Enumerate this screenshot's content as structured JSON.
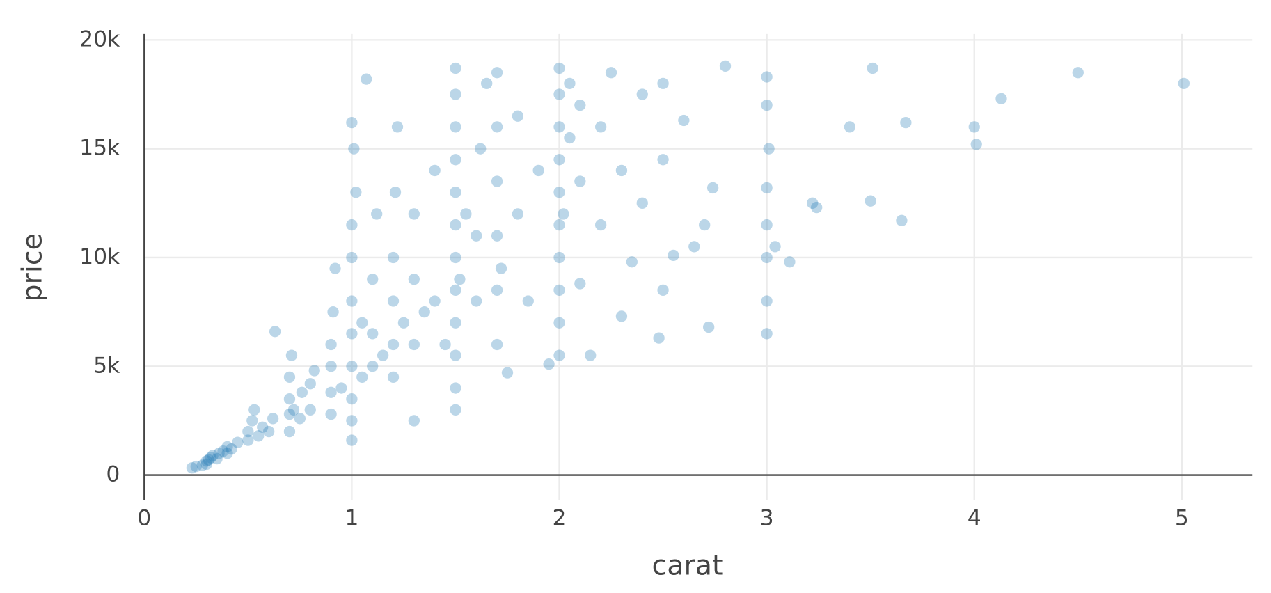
{
  "chart_data": {
    "type": "scatter",
    "x_label": "carat",
    "y_label": "price",
    "xlim": [
      0,
      5.34
    ],
    "ylim": [
      -1150,
      20270
    ],
    "xticks": [
      0,
      1,
      2,
      3,
      4,
      5
    ],
    "yticks": [
      0,
      {
        "value": 5000,
        "label": "5k"
      },
      {
        "value": 10000,
        "label": "10k"
      },
      {
        "value": 15000,
        "label": "15k"
      },
      {
        "value": 20000,
        "label": "20k"
      }
    ],
    "grid": true,
    "color": "#1f77b4",
    "opacity": 0.3,
    "x": [
      0.23,
      0.25,
      0.28,
      0.3,
      0.3,
      0.31,
      0.32,
      0.33,
      0.35,
      0.36,
      0.38,
      0.4,
      0.4,
      0.42,
      0.45,
      0.5,
      0.5,
      0.52,
      0.53,
      0.55,
      0.57,
      0.6,
      0.62,
      0.63,
      0.7,
      0.7,
      0.7,
      0.7,
      0.71,
      0.72,
      0.75,
      0.76,
      0.8,
      0.8,
      0.82,
      0.9,
      0.9,
      0.9,
      0.9,
      0.91,
      0.92,
      0.95,
      1.0,
      1.0,
      1.0,
      1.0,
      1.0,
      1.0,
      1.0,
      1.0,
      1.0,
      1.01,
      1.02,
      1.05,
      1.05,
      1.07,
      1.1,
      1.1,
      1.1,
      1.12,
      1.15,
      1.2,
      1.2,
      1.2,
      1.2,
      1.21,
      1.22,
      1.25,
      1.3,
      1.3,
      1.3,
      1.3,
      1.35,
      1.4,
      1.4,
      1.45,
      1.5,
      1.5,
      1.5,
      1.5,
      1.5,
      1.5,
      1.5,
      1.5,
      1.5,
      1.5,
      1.5,
      1.5,
      1.52,
      1.55,
      1.6,
      1.6,
      1.62,
      1.65,
      1.7,
      1.7,
      1.7,
      1.7,
      1.7,
      1.7,
      1.72,
      1.75,
      1.8,
      1.8,
      1.85,
      1.9,
      1.95,
      2.0,
      2.0,
      2.0,
      2.0,
      2.0,
      2.0,
      2.0,
      2.0,
      2.0,
      2.0,
      2.02,
      2.05,
      2.05,
      2.1,
      2.1,
      2.1,
      2.15,
      2.2,
      2.2,
      2.25,
      2.3,
      2.3,
      2.35,
      2.4,
      2.4,
      2.48,
      2.5,
      2.5,
      2.5,
      2.55,
      2.6,
      2.65,
      2.7,
      2.72,
      2.74,
      2.8,
      3.0,
      3.0,
      3.0,
      3.0,
      3.0,
      3.0,
      3.0,
      3.01,
      3.04,
      3.11,
      3.22,
      3.24,
      3.4,
      3.5,
      3.51,
      3.65,
      3.67,
      4.0,
      4.01,
      4.13,
      4.5,
      5.01
    ],
    "values": [
      330,
      400,
      450,
      500,
      650,
      700,
      800,
      900,
      750,
      1000,
      1100,
      1000,
      1300,
      1200,
      1500,
      1600,
      2000,
      2500,
      3000,
      1800,
      2200,
      2000,
      2600,
      6600,
      2000,
      2800,
      3500,
      4500,
      5500,
      3000,
      2600,
      3800,
      3000,
      4200,
      4800,
      2800,
      3800,
      5000,
      6000,
      7500,
      9500,
      4000,
      1600,
      2500,
      3500,
      5000,
      6500,
      8000,
      10000,
      11500,
      16200,
      15000,
      13000,
      4500,
      7000,
      18200,
      5000,
      6500,
      9000,
      12000,
      5500,
      4500,
      6000,
      8000,
      10000,
      13000,
      16000,
      7000,
      6000,
      9000,
      12000,
      2500,
      7500,
      8000,
      14000,
      6000,
      3000,
      4000,
      5500,
      7000,
      8500,
      10000,
      11500,
      13000,
      14500,
      16000,
      17500,
      18700,
      9000,
      12000,
      8000,
      11000,
      15000,
      18000,
      6000,
      8500,
      11000,
      13500,
      16000,
      18500,
      9500,
      4700,
      12000,
      16500,
      8000,
      14000,
      5100,
      5500,
      7000,
      8500,
      10000,
      11500,
      13000,
      14500,
      16000,
      17500,
      18700,
      12000,
      15500,
      18000,
      8800,
      13500,
      17000,
      5500,
      11500,
      16000,
      18500,
      7300,
      14000,
      9800,
      12500,
      17500,
      6300,
      8500,
      14500,
      18000,
      10100,
      16300,
      10500,
      11500,
      6800,
      13200,
      18800,
      6500,
      8000,
      10000,
      11500,
      13200,
      17000,
      18300,
      15000,
      10500,
      9800,
      12500,
      12300,
      16000,
      12600,
      18700,
      11700,
      16200,
      16000,
      15200,
      17300,
      18500,
      18000
    ]
  }
}
